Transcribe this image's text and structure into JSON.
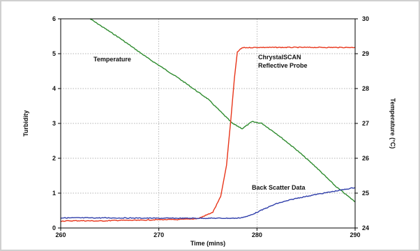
{
  "chart_data": {
    "type": "line",
    "title": "",
    "xlabel": "Time (mins)",
    "ylabel": "Turbidity",
    "y2label": "Temperature (°C)",
    "xlim": [
      260,
      290
    ],
    "ylim": [
      0,
      6
    ],
    "y2lim": [
      24,
      30
    ],
    "grid": true,
    "x_ticks": [
      "260",
      "270",
      "280",
      "290"
    ],
    "y_ticks": [
      "0",
      "1",
      "2",
      "3",
      "4",
      "5",
      "6"
    ],
    "y2_ticks": [
      "24",
      "25",
      "26",
      "27",
      "28",
      "29",
      "30"
    ],
    "series": [
      {
        "name": "Temperature",
        "axis": "right",
        "color": "#2e8b2e",
        "x": [
          263.0,
          266.0,
          269.0,
          272.0,
          275.0,
          277.5,
          278.5,
          279.5,
          280.5,
          282.0,
          284.0,
          286.0,
          288.0,
          290.0
        ],
        "y": [
          30.0,
          29.45,
          28.85,
          28.3,
          27.7,
          27.0,
          26.85,
          27.05,
          27.0,
          26.7,
          26.25,
          25.75,
          25.2,
          24.75
        ]
      },
      {
        "name": "ChrystalSCAN Reflective Probe",
        "axis": "left",
        "color": "#e8351a",
        "x": [
          260.0,
          262.0,
          264.0,
          266.0,
          268.0,
          270.0,
          272.0,
          274.0,
          275.5,
          276.3,
          276.9,
          277.3,
          277.7,
          278.0,
          278.5,
          280.0,
          283.0,
          286.0,
          290.0
        ],
        "y": [
          0.2,
          0.21,
          0.2,
          0.22,
          0.22,
          0.24,
          0.24,
          0.27,
          0.45,
          0.9,
          1.8,
          3.0,
          4.3,
          5.05,
          5.17,
          5.18,
          5.18,
          5.18,
          5.18
        ]
      },
      {
        "name": "Back Scatter Data",
        "axis": "left",
        "color": "#2f3eaa",
        "x": [
          260.0,
          265.0,
          270.0,
          275.0,
          278.0,
          279.0,
          280.0,
          281.0,
          282.0,
          284.0,
          286.0,
          288.0,
          290.0
        ],
        "y": [
          0.29,
          0.29,
          0.28,
          0.28,
          0.28,
          0.33,
          0.45,
          0.58,
          0.7,
          0.85,
          0.96,
          1.06,
          1.16
        ]
      }
    ],
    "annotations": [
      "Temperature",
      "ChrystalSCAN",
      "Reflective Probe",
      "Back Scatter Data"
    ]
  },
  "colors": {
    "frame": "#cfcfcf",
    "grid": "#9a9a9a",
    "axis": "#000000"
  }
}
